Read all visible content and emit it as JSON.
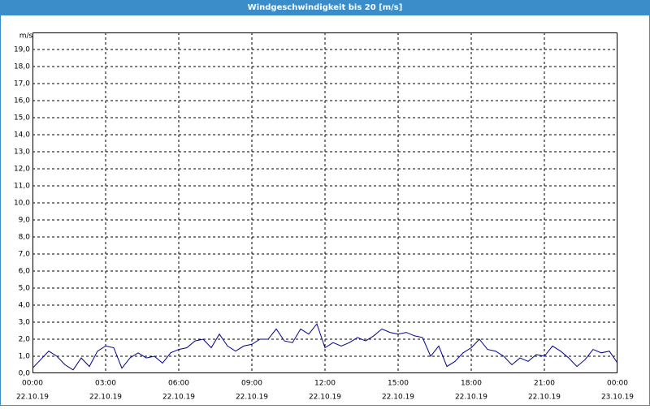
{
  "chart_data": {
    "type": "line",
    "title": "Windgeschwindigkeit bis 20 [m/s]",
    "y_unit": "m/s",
    "x": [
      0,
      20,
      40,
      60,
      80,
      100,
      120,
      140,
      160,
      180,
      200,
      220,
      240,
      260,
      280,
      300,
      320,
      340,
      360,
      380,
      400,
      420,
      440,
      460,
      480,
      500,
      520,
      540,
      560,
      580,
      600,
      620,
      640,
      660,
      680,
      700,
      720,
      740,
      760,
      780,
      800,
      820,
      840,
      860,
      880,
      900,
      920,
      940,
      960,
      980,
      1000,
      1020,
      1040,
      1060,
      1080,
      1100,
      1120,
      1140,
      1160,
      1180,
      1200,
      1220,
      1240,
      1260,
      1280,
      1300,
      1320,
      1340,
      1360,
      1380,
      1400,
      1420,
      1440
    ],
    "series": [
      {
        "name": "Windgeschwindigkeit",
        "color": "#00008b",
        "values": [
          0.3,
          0.8,
          1.3,
          1.0,
          0.5,
          0.2,
          0.9,
          0.4,
          1.3,
          1.6,
          1.5,
          0.3,
          0.9,
          1.2,
          0.9,
          1.0,
          0.6,
          1.2,
          1.4,
          1.5,
          1.9,
          2.0,
          1.5,
          2.3,
          1.6,
          1.3,
          1.6,
          1.7,
          2.0,
          2.0,
          2.6,
          1.9,
          1.8,
          2.6,
          2.3,
          2.9,
          1.5,
          1.8,
          1.6,
          1.8,
          2.1,
          1.9,
          2.2,
          2.6,
          2.4,
          2.3,
          2.4,
          2.2,
          2.1,
          1.0,
          1.6,
          0.4,
          0.7,
          1.2,
          1.5,
          2.0,
          1.4,
          1.3,
          1.0,
          0.5,
          0.9,
          0.7,
          1.1,
          1.0,
          1.6,
          1.3,
          0.9,
          0.4,
          0.8,
          1.4,
          1.2,
          1.3,
          0.6
        ]
      }
    ],
    "xlim": [
      0,
      1440
    ],
    "xticks": [
      {
        "value": 0,
        "label": "00:00",
        "date": "22.10.19"
      },
      {
        "value": 180,
        "label": "03:00",
        "date": "22.10.19"
      },
      {
        "value": 360,
        "label": "06:00",
        "date": "22.10.19"
      },
      {
        "value": 540,
        "label": "09:00",
        "date": "22.10.19"
      },
      {
        "value": 720,
        "label": "12:00",
        "date": "22.10.19"
      },
      {
        "value": 900,
        "label": "15:00",
        "date": "22.10.19"
      },
      {
        "value": 1080,
        "label": "18:00",
        "date": "22.10.19"
      },
      {
        "value": 1260,
        "label": "21:00",
        "date": "22.10.19"
      },
      {
        "value": 1440,
        "label": "00:00",
        "date": "23.10.19"
      }
    ],
    "ylim": [
      0,
      20
    ],
    "yticks": [
      {
        "value": 0,
        "label": "0,0"
      },
      {
        "value": 1,
        "label": "1,0"
      },
      {
        "value": 2,
        "label": "2,0"
      },
      {
        "value": 3,
        "label": "3,0"
      },
      {
        "value": 4,
        "label": "4,0"
      },
      {
        "value": 5,
        "label": "5,0"
      },
      {
        "value": 6,
        "label": "6,0"
      },
      {
        "value": 7,
        "label": "7,0"
      },
      {
        "value": 8,
        "label": "8,0"
      },
      {
        "value": 9,
        "label": "9,0"
      },
      {
        "value": 10,
        "label": "10,0"
      },
      {
        "value": 11,
        "label": "11,0"
      },
      {
        "value": 12,
        "label": "12,0"
      },
      {
        "value": 13,
        "label": "13,0"
      },
      {
        "value": 14,
        "label": "14,0"
      },
      {
        "value": 15,
        "label": "15,0"
      },
      {
        "value": 16,
        "label": "16,0"
      },
      {
        "value": 17,
        "label": "17,0"
      },
      {
        "value": 18,
        "label": "18,0"
      },
      {
        "value": 19,
        "label": "19,0"
      }
    ],
    "grid": true
  }
}
